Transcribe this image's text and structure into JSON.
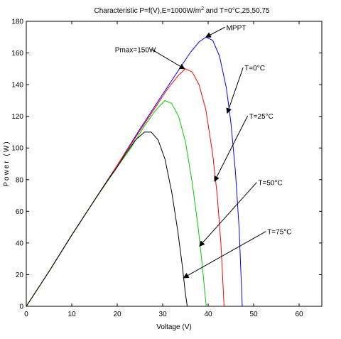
{
  "chart_data": {
    "type": "line",
    "title": "Characteristic P=f(V),E=1000W/m",
    "title_sup": "2",
    "title_suffix": " and T=0°C,25,50,75",
    "xlabel": "Voltage (V)",
    "ylabel": "Power (W)",
    "xlim": [
      0,
      65
    ],
    "ylim": [
      0,
      180
    ],
    "xticks": [
      0,
      10,
      20,
      30,
      40,
      50,
      60
    ],
    "yticks": [
      0,
      20,
      40,
      60,
      80,
      100,
      120,
      140,
      160,
      180
    ],
    "grid": false,
    "legend": "none",
    "series": [
      {
        "color": "#0000ff",
        "x": [
          0,
          5,
          10,
          15,
          20,
          25,
          30,
          33,
          36,
          38,
          39.5,
          41,
          42.5,
          44,
          45,
          46,
          46.8,
          47.3,
          47.5
        ],
        "y": [
          0,
          22,
          45,
          67,
          89,
          112,
          134,
          147,
          160,
          167,
          170,
          168,
          158,
          138,
          116,
          85,
          50,
          15,
          0
        ]
      },
      {
        "color": "#ff0000",
        "x": [
          0,
          5,
          10,
          15,
          20,
          25,
          28,
          31,
          33.5,
          35,
          36.5,
          38,
          39.5,
          41,
          42,
          42.8,
          43.3,
          43.5
        ],
        "y": [
          0,
          22,
          45,
          67,
          89,
          111,
          124,
          137,
          146,
          150,
          148,
          140,
          124,
          96,
          70,
          40,
          12,
          0
        ]
      },
      {
        "color": "#00cc00",
        "x": [
          0,
          5,
          10,
          15,
          20,
          23,
          26,
          28.5,
          30.5,
          32,
          33.5,
          35,
          36.5,
          37.8,
          38.7,
          39.3,
          39.6
        ],
        "y": [
          0,
          22,
          45,
          67,
          88,
          100,
          114,
          124,
          130,
          128,
          120,
          104,
          78,
          50,
          26,
          8,
          0
        ]
      },
      {
        "color": "#000000",
        "x": [
          0,
          5,
          10,
          15,
          18,
          20,
          22,
          24,
          26,
          27.5,
          29,
          30.5,
          32,
          33.3,
          34.3,
          35,
          35.4
        ],
        "y": [
          0,
          22,
          45,
          67,
          80,
          88,
          97,
          105,
          110,
          110,
          105,
          93,
          72,
          48,
          26,
          8,
          0
        ]
      }
    ],
    "annotations": [
      {
        "text": "MPPT",
        "x": 44,
        "y": 174.5,
        "arrow_to": [
          39.5,
          170
        ]
      },
      {
        "text": "Pmax=150W",
        "x": 19.5,
        "y": 160.5,
        "arrow_to": [
          34.8,
          150
        ]
      },
      {
        "text": "T=0°C",
        "x": 48,
        "y": 149,
        "arrow_to": [
          44.2,
          122
        ]
      },
      {
        "text": "T=25°C",
        "x": 49,
        "y": 118.5,
        "arrow_to": [
          41.4,
          79
        ]
      },
      {
        "text": "T=50°C",
        "x": 51,
        "y": 76.5,
        "arrow_to": [
          38.1,
          38
        ]
      },
      {
        "text": "T=75°C",
        "x": 53,
        "y": 45.5,
        "arrow_to": [
          34.6,
          18
        ]
      }
    ]
  }
}
